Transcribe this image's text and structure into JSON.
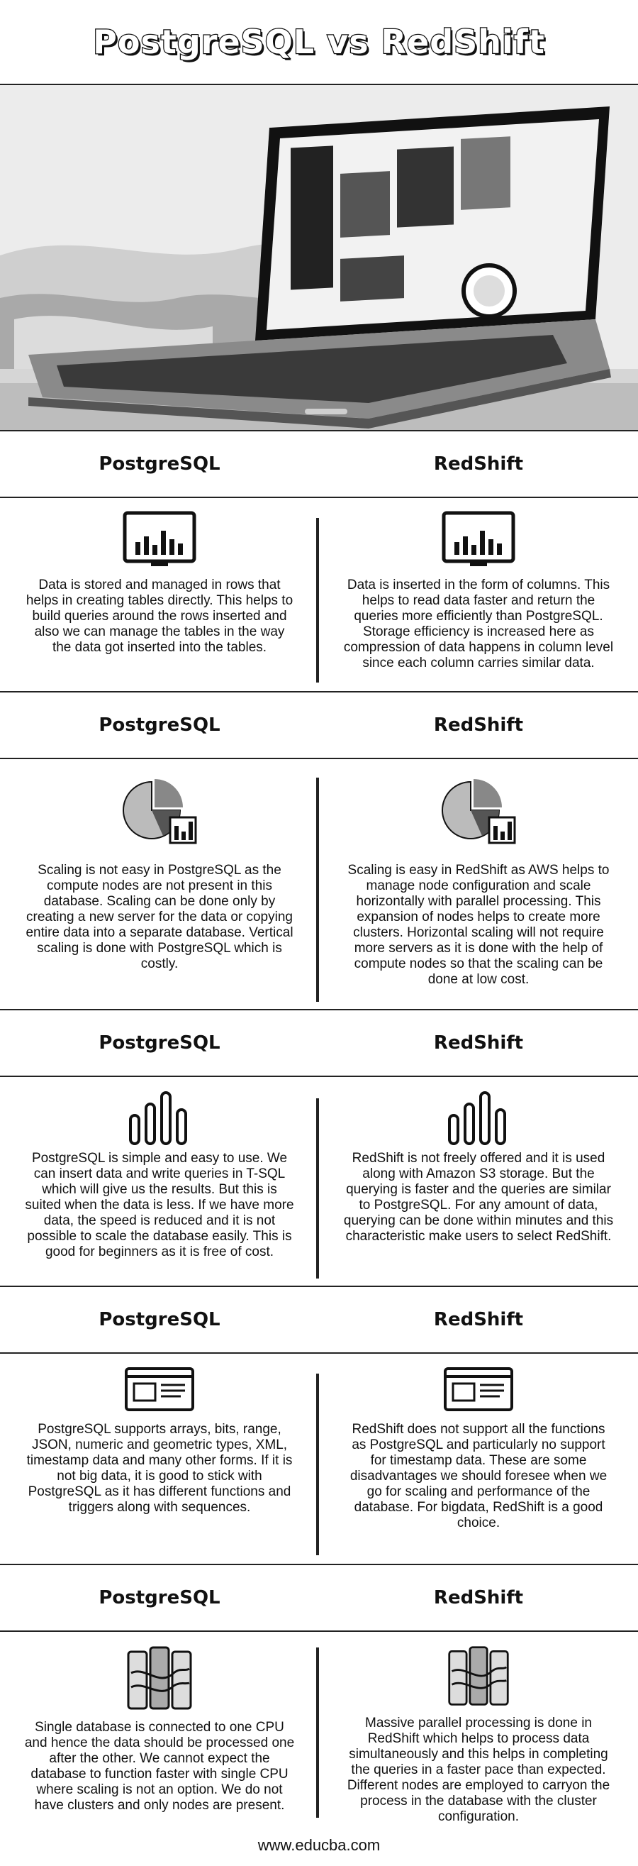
{
  "title": "PostgreSQL vs RedShift",
  "headers": {
    "left": "PostgreSQL",
    "right": "RedShift"
  },
  "sections": [
    {
      "icon": "bar-chart-screen-icon",
      "left": "Data is stored and managed in rows that helps in creating tables directly. This helps to build queries around the rows inserted and also we can manage the tables in the way the data got inserted into the tables.",
      "right": "Data is inserted in the form of columns. This helps to read data faster and return the queries more efficiently than PostgreSQL. Storage efficiency is increased here as compression of data happens in column level since each column carries similar data."
    },
    {
      "icon": "pie-chart-icon",
      "left": "Scaling is not easy in PostgreSQL as the compute nodes are not present in this database. Scaling can be done only by creating a new server for the data or copying entire data into a separate database. Vertical scaling is done with PostgreSQL which is costly.",
      "right": "Scaling is easy in RedShift as AWS helps to manage node configuration and scale horizontally with parallel processing. This expansion of nodes helps to create more clusters. Horizontal scaling will not require more servers as it is done with the help of compute nodes so that the scaling can be done at low cost."
    },
    {
      "icon": "bar-graph-outline-icon",
      "left": "PostgreSQL is simple and easy to use. We can insert data and write queries in T-SQL which will give us the results. But this is suited when the data is less. If we have more data, the speed is reduced and it is not possible to scale the database easily. This is good for beginners as it is free of cost.",
      "right": "RedShift is not freely offered and it is used along with Amazon S3 storage. But the querying is faster and the queries are similar to PostgreSQL. For any amount of data, querying can be done within minutes and this characteristic make users to select RedShift."
    },
    {
      "icon": "web-page-window-icon",
      "left": "PostgreSQL supports arrays, bits, range, JSON, numeric and geometric types, XML, timestamp data and many other forms. If it is not big data, it is good to stick with PostgreSQL as it has different functions and triggers along with sequences.",
      "right": "RedShift does not support all the functions as PostgreSQL and particularly no support for timestamp data. These are some disadvantages we should foresee when we go for scaling and performance of the database. For bigdata, RedShift is a good choice."
    },
    {
      "icon": "cpu-cluster-icon",
      "left": "Single database is connected to one CPU and hence the data should be processed one after the other. We cannot expect the database to function faster with single CPU where scaling is not an option. We do not have clusters and only nodes are present.",
      "right": "Massive parallel processing is done in RedShift which helps to process data simultaneously and this helps in completing the queries in a faster pace than expected. Different nodes are employed to carryon the process in the database with the cluster configuration."
    }
  ],
  "footer": "www.educba.com"
}
